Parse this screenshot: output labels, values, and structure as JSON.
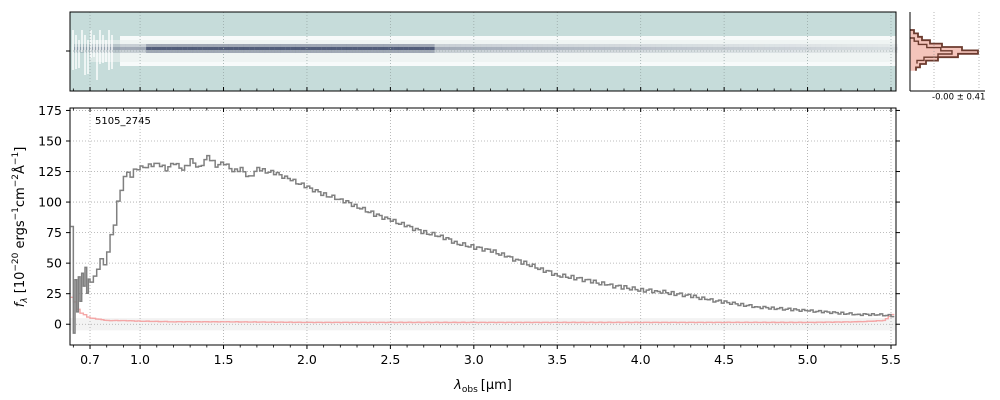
{
  "chart_data": [
    {
      "type": "heatmap",
      "panel": "2D spectrum",
      "description_visible": "spectral trace image with center-line tick",
      "colormap": [
        "#c6dcda",
        "#ffffff",
        "#1c2a50"
      ],
      "x_ticks_shared_with": "1D spectrum",
      "grid": true
    },
    {
      "type": "line",
      "panel": "1D spectrum",
      "annotation": "5105_2745",
      "xlabel_main": "λ",
      "xlabel_sub": "obs",
      "xlabel_unit": "[μm]",
      "ylabel": "f_λ [10^-20 ergs^-1cm^-2Å^-1]",
      "ylabel_parts": {
        "f": "f",
        "lam": "λ",
        "a": " [10",
        "exp1": "−20",
        "b": " ergs",
        "exp2": "−1",
        "c": "cm",
        "exp3": "−2",
        "d": "Å",
        "exp4": "−1",
        "e": "]"
      },
      "ylim": [
        -17,
        177
      ],
      "xlim": [
        0.58,
        5.53
      ],
      "x_ticks": [
        {
          "value": 0.7,
          "label": "0.7"
        },
        {
          "value": 1.0,
          "label": "1.0"
        },
        {
          "value": 1.5,
          "label": "1.5"
        },
        {
          "value": 2.0,
          "label": "2.0"
        },
        {
          "value": 2.5,
          "label": "2.5"
        },
        {
          "value": 3.0,
          "label": "3.0"
        },
        {
          "value": 3.5,
          "label": "3.5"
        },
        {
          "value": 4.0,
          "label": "4.0"
        },
        {
          "value": 4.5,
          "label": "4.5"
        },
        {
          "value": 5.0,
          "label": "5.0"
        },
        {
          "value": 5.5,
          "label": "5.5"
        }
      ],
      "y_ticks": [
        {
          "value": 0,
          "label": "0"
        },
        {
          "value": 25,
          "label": "25"
        },
        {
          "value": 50,
          "label": "50"
        },
        {
          "value": 75,
          "label": "75"
        },
        {
          "value": 100,
          "label": "100"
        },
        {
          "value": 125,
          "label": "125"
        },
        {
          "value": 150,
          "label": "150"
        },
        {
          "value": 175,
          "label": "175"
        }
      ],
      "grid": true,
      "series": [
        {
          "role": "flux",
          "color": "#808080",
          "x": [
            0.585,
            0.6,
            0.61,
            0.62,
            0.63,
            0.64,
            0.65,
            0.66,
            0.67,
            0.68,
            0.69,
            0.7,
            0.72,
            0.74,
            0.76,
            0.78,
            0.8,
            0.82,
            0.84,
            0.86,
            0.88,
            0.9,
            0.92,
            0.94,
            0.96,
            0.98,
            1.0,
            1.05,
            1.1,
            1.15,
            1.2,
            1.25,
            1.3,
            1.35,
            1.4,
            1.45,
            1.5,
            1.55,
            1.6,
            1.65,
            1.7,
            1.75,
            1.8,
            1.9,
            2.0,
            2.1,
            2.2,
            2.3,
            2.4,
            2.5,
            2.6,
            2.7,
            2.8,
            2.9,
            3.0,
            3.1,
            3.2,
            3.3,
            3.4,
            3.5,
            3.6,
            3.7,
            3.8,
            3.9,
            4.0,
            4.1,
            4.2,
            4.3,
            4.4,
            4.5,
            4.6,
            4.7,
            4.8,
            4.9,
            5.0,
            5.1,
            5.2,
            5.3,
            5.4,
            5.5,
            5.52
          ],
          "y": [
            80,
            -8,
            35,
            10,
            40,
            20,
            42,
            30,
            45,
            25,
            38,
            36,
            40,
            44,
            52,
            48,
            60,
            75,
            82,
            100,
            108,
            120,
            125,
            122,
            128,
            126,
            128,
            130,
            132,
            127,
            132,
            126,
            134,
            128,
            138,
            130,
            132,
            125,
            127,
            120,
            128,
            125,
            124,
            118,
            112,
            106,
            102,
            96,
            90,
            85,
            80,
            75,
            72,
            66,
            63,
            60,
            55,
            50,
            45,
            40,
            38,
            35,
            32,
            30,
            28,
            27,
            25,
            23,
            20,
            18,
            16,
            14,
            13,
            12,
            11,
            10,
            9,
            8,
            8,
            7,
            6
          ]
        },
        {
          "role": "uncertainty",
          "color": "#f4a6a6",
          "x": [
            0.585,
            0.6,
            0.62,
            0.64,
            0.66,
            0.68,
            0.7,
            0.75,
            0.8,
            0.9,
            1.0,
            1.2,
            1.5,
            2.0,
            2.5,
            3.0,
            3.5,
            4.0,
            4.5,
            5.0,
            5.3,
            5.45,
            5.5,
            5.52
          ],
          "y": [
            22,
            18,
            12,
            9,
            8,
            6,
            5,
            4,
            3,
            3,
            2.5,
            2,
            2,
            1.5,
            1.5,
            1.5,
            1.5,
            1.5,
            1.5,
            1.5,
            2,
            3,
            8,
            20
          ]
        }
      ]
    },
    {
      "type": "histogram",
      "panel": "pixel distribution",
      "annotation": "-0.00 ± 0.41",
      "colors": {
        "fill": "#f4c4bb",
        "line": "#6b3a2e"
      }
    }
  ]
}
